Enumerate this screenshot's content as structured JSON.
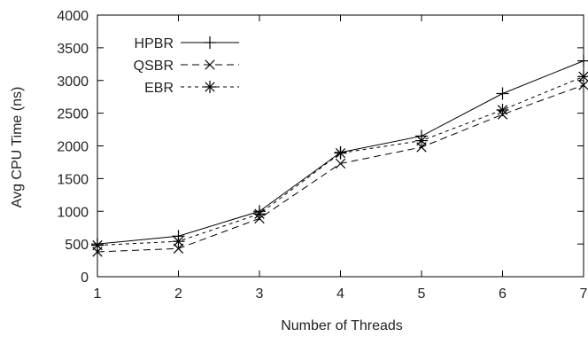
{
  "chart_data": {
    "type": "line",
    "title": "",
    "xlabel": "Number of Threads",
    "ylabel": "Avg CPU Time (ns)",
    "x": [
      1,
      2,
      3,
      4,
      5,
      6,
      7
    ],
    "xlim": [
      1,
      7
    ],
    "ylim": [
      0,
      4000
    ],
    "xticks": [
      "1",
      "2",
      "3",
      "4",
      "5",
      "6",
      "7"
    ],
    "yticks": [
      "0",
      "500",
      "1000",
      "1500",
      "2000",
      "2500",
      "3000",
      "3500",
      "4000"
    ],
    "grid": false,
    "legend_position": "top-left",
    "series": [
      {
        "name": "HPBR",
        "values": [
          500,
          620,
          1000,
          1900,
          2150,
          2800,
          3300
        ],
        "line_style": "solid",
        "marker": "plus"
      },
      {
        "name": "QSBR",
        "values": [
          380,
          430,
          890,
          1730,
          1980,
          2480,
          2930
        ],
        "line_style": "long-dash",
        "marker": "x"
      },
      {
        "name": "EBR",
        "values": [
          480,
          540,
          960,
          1890,
          2080,
          2550,
          3060
        ],
        "line_style": "short-dash",
        "marker": "star"
      }
    ]
  }
}
